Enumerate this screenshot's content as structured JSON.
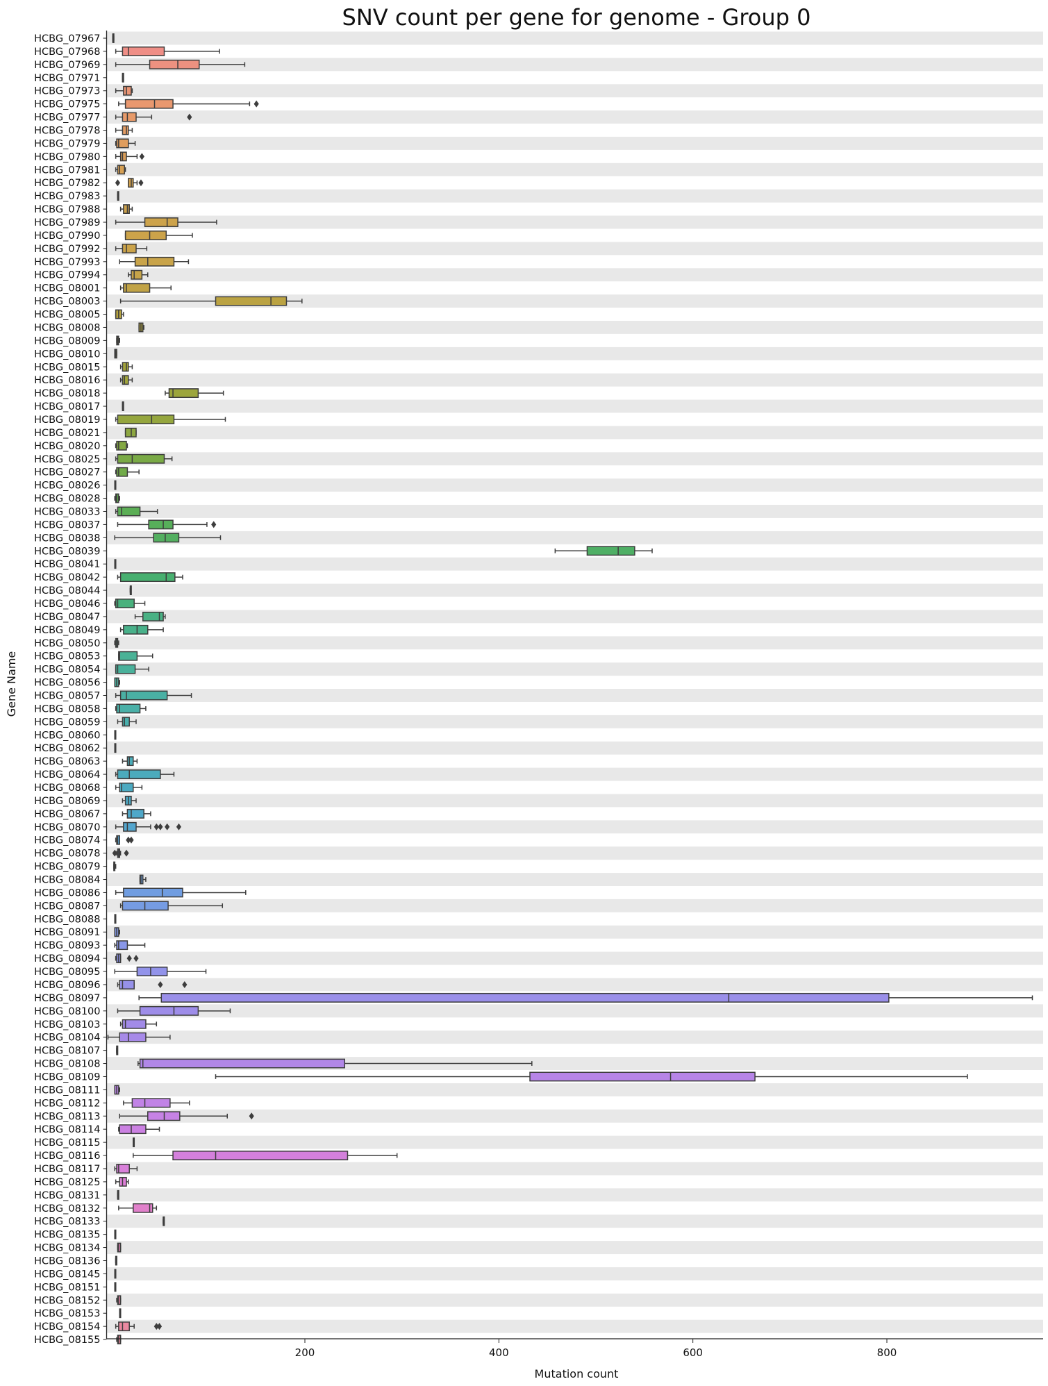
{
  "chart_data": {
    "type": "box",
    "orientation": "horizontal",
    "title": "SNV count per gene for genome - Group 0",
    "xlabel": "Mutation count",
    "ylabel": "Gene Name",
    "xlim": [
      -20,
      960
    ],
    "xticks": [
      200,
      400,
      600,
      800
    ],
    "row_stripes": true,
    "grid": false,
    "categories": [
      "HCBG_07967",
      "HCBG_07968",
      "HCBG_07969",
      "HCBG_07971",
      "HCBG_07973",
      "HCBG_07975",
      "HCBG_07977",
      "HCBG_07978",
      "HCBG_07979",
      "HCBG_07980",
      "HCBG_07981",
      "HCBG_07982",
      "HCBG_07983",
      "HCBG_07988",
      "HCBG_07989",
      "HCBG_07990",
      "HCBG_07992",
      "HCBG_07993",
      "HCBG_07994",
      "HCBG_08001",
      "HCBG_08003",
      "HCBG_08005",
      "HCBG_08008",
      "HCBG_08009",
      "HCBG_08010",
      "HCBG_08015",
      "HCBG_08016",
      "HCBG_08018",
      "HCBG_08017",
      "HCBG_08019",
      "HCBG_08021",
      "HCBG_08020",
      "HCBG_08025",
      "HCBG_08027",
      "HCBG_08026",
      "HCBG_08028",
      "HCBG_08033",
      "HCBG_08037",
      "HCBG_08038",
      "HCBG_08039",
      "HCBG_08041",
      "HCBG_08042",
      "HCBG_08044",
      "HCBG_08046",
      "HCBG_08047",
      "HCBG_08049",
      "HCBG_08050",
      "HCBG_08053",
      "HCBG_08054",
      "HCBG_08056",
      "HCBG_08057",
      "HCBG_08058",
      "HCBG_08059",
      "HCBG_08060",
      "HCBG_08062",
      "HCBG_08063",
      "HCBG_08064",
      "HCBG_08068",
      "HCBG_08069",
      "HCBG_08067",
      "HCBG_08070",
      "HCBG_08074",
      "HCBG_08078",
      "HCBG_08079",
      "HCBG_08084",
      "HCBG_08086",
      "HCBG_08087",
      "HCBG_08088",
      "HCBG_08091",
      "HCBG_08093",
      "HCBG_08094",
      "HCBG_08095",
      "HCBG_08096",
      "HCBG_08097",
      "HCBG_08100",
      "HCBG_08103",
      "HCBG_08104",
      "HCBG_08107",
      "HCBG_08108",
      "HCBG_08109",
      "HCBG_08111",
      "HCBG_08112",
      "HCBG_08113",
      "HCBG_08114",
      "HCBG_08115",
      "HCBG_08116",
      "HCBG_08117",
      "HCBG_08125",
      "HCBG_08131",
      "HCBG_08132",
      "HCBG_08133",
      "HCBG_08135",
      "HCBG_08134",
      "HCBG_08136",
      "HCBG_08145",
      "HCBG_08151",
      "HCBG_08152",
      "HCBG_08153",
      "HCBG_08154",
      "HCBG_08155"
    ],
    "boxes": [
      {
        "min": 2,
        "q1": 2,
        "median": 2,
        "q3": 3,
        "max": 3,
        "outliers": []
      },
      {
        "min": 5,
        "q1": 12,
        "median": 18,
        "q3": 55,
        "max": 112,
        "outliers": []
      },
      {
        "min": 5,
        "q1": 40,
        "median": 69,
        "q3": 91,
        "max": 138,
        "outliers": []
      },
      {
        "min": 12,
        "q1": 12,
        "median": 12,
        "q3": 12,
        "max": 12,
        "outliers": []
      },
      {
        "min": 5,
        "q1": 13,
        "median": 16,
        "q3": 21,
        "max": 22,
        "outliers": []
      },
      {
        "min": 8,
        "q1": 15,
        "median": 45,
        "q3": 64,
        "max": 143,
        "outliers": [
          150
        ]
      },
      {
        "min": 5,
        "q1": 12,
        "median": 17,
        "q3": 26,
        "max": 42,
        "outliers": [
          81
        ]
      },
      {
        "min": 5,
        "q1": 12,
        "median": 16,
        "q3": 18,
        "max": 22,
        "outliers": []
      },
      {
        "min": 5,
        "q1": 6,
        "median": 8,
        "q3": 18,
        "max": 25,
        "outliers": []
      },
      {
        "min": 5,
        "q1": 10,
        "median": 12,
        "q3": 16,
        "max": 27,
        "outliers": [
          32
        ]
      },
      {
        "min": 5,
        "q1": 7,
        "median": 9,
        "q3": 14,
        "max": 15,
        "outliers": []
      },
      {
        "min": 18,
        "q1": 18,
        "median": 21,
        "q3": 23,
        "max": 27,
        "outliers": [
          7,
          31
        ]
      },
      {
        "min": 7,
        "q1": 7,
        "median": 7,
        "q3": 7,
        "max": 7,
        "outliers": []
      },
      {
        "min": 10,
        "q1": 13,
        "median": 17,
        "q3": 19,
        "max": 22,
        "outliers": []
      },
      {
        "min": 5,
        "q1": 35,
        "median": 58,
        "q3": 69,
        "max": 109,
        "outliers": []
      },
      {
        "min": 15,
        "q1": 15,
        "median": 40,
        "q3": 57,
        "max": 84,
        "outliers": []
      },
      {
        "min": 5,
        "q1": 12,
        "median": 16,
        "q3": 26,
        "max": 37,
        "outliers": []
      },
      {
        "min": 9,
        "q1": 25,
        "median": 38,
        "q3": 65,
        "max": 80,
        "outliers": []
      },
      {
        "min": 18,
        "q1": 21,
        "median": 24,
        "q3": 32,
        "max": 38,
        "outliers": []
      },
      {
        "min": 10,
        "q1": 13,
        "median": 16,
        "q3": 40,
        "max": 62,
        "outliers": []
      },
      {
        "min": 10,
        "q1": 108,
        "median": 165,
        "q3": 181,
        "max": 197,
        "outliers": []
      },
      {
        "min": 5,
        "q1": 5,
        "median": 8,
        "q3": 11,
        "max": 13,
        "outliers": []
      },
      {
        "min": 29,
        "q1": 29,
        "median": 31,
        "q3": 33,
        "max": 34,
        "outliers": []
      },
      {
        "min": 6,
        "q1": 6,
        "median": 7,
        "q3": 8,
        "max": 9,
        "outliers": []
      },
      {
        "min": 4,
        "q1": 4,
        "median": 5,
        "q3": 6,
        "max": 6,
        "outliers": []
      },
      {
        "min": 10,
        "q1": 12,
        "median": 16,
        "q3": 18,
        "max": 22,
        "outliers": []
      },
      {
        "min": 10,
        "q1": 12,
        "median": 14,
        "q3": 18,
        "max": 22,
        "outliers": []
      },
      {
        "min": 56,
        "q1": 60,
        "median": 64,
        "q3": 90,
        "max": 116,
        "outliers": []
      },
      {
        "min": 12,
        "q1": 12,
        "median": 12,
        "q3": 12,
        "max": 12,
        "outliers": []
      },
      {
        "min": 5,
        "q1": 7,
        "median": 42,
        "q3": 65,
        "max": 118,
        "outliers": []
      },
      {
        "min": 15,
        "q1": 15,
        "median": 21,
        "q3": 26,
        "max": 26,
        "outliers": []
      },
      {
        "min": 5,
        "q1": 6,
        "median": 8,
        "q3": 16,
        "max": 17,
        "outliers": []
      },
      {
        "min": 5,
        "q1": 7,
        "median": 22,
        "q3": 55,
        "max": 63,
        "outliers": []
      },
      {
        "min": 5,
        "q1": 6,
        "median": 8,
        "q3": 17,
        "max": 29,
        "outliers": []
      },
      {
        "min": 4,
        "q1": 4,
        "median": 4,
        "q3": 4,
        "max": 4,
        "outliers": []
      },
      {
        "min": 4,
        "q1": 5,
        "median": 6,
        "q3": 8,
        "max": 9,
        "outliers": []
      },
      {
        "min": 5,
        "q1": 7,
        "median": 11,
        "q3": 30,
        "max": 48,
        "outliers": []
      },
      {
        "min": 7,
        "q1": 39,
        "median": 54,
        "q3": 64,
        "max": 99,
        "outliers": [
          106
        ]
      },
      {
        "min": 4,
        "q1": 44,
        "median": 56,
        "q3": 70,
        "max": 113,
        "outliers": []
      },
      {
        "min": 458,
        "q1": 491,
        "median": 523,
        "q3": 540,
        "max": 558,
        "outliers": []
      },
      {
        "min": 4,
        "q1": 4,
        "median": 4,
        "q3": 4,
        "max": 4,
        "outliers": []
      },
      {
        "min": 7,
        "q1": 10,
        "median": 57,
        "q3": 66,
        "max": 74,
        "outliers": []
      },
      {
        "min": 20,
        "q1": 20,
        "median": 20,
        "q3": 20,
        "max": 20,
        "outliers": []
      },
      {
        "min": 4,
        "q1": 5,
        "median": 7,
        "q3": 24,
        "max": 35,
        "outliers": []
      },
      {
        "min": 25,
        "q1": 33,
        "median": 50,
        "q3": 54,
        "max": 56,
        "outliers": []
      },
      {
        "min": 10,
        "q1": 13,
        "median": 27,
        "q3": 38,
        "max": 54,
        "outliers": []
      },
      {
        "min": 4,
        "q1": 5,
        "median": 6,
        "q3": 7,
        "max": 8,
        "outliers": []
      },
      {
        "min": 8,
        "q1": 8,
        "median": 9,
        "q3": 27,
        "max": 43,
        "outliers": []
      },
      {
        "min": 5,
        "q1": 5,
        "median": 7,
        "q3": 25,
        "max": 39,
        "outliers": []
      },
      {
        "min": 4,
        "q1": 4,
        "median": 6,
        "q3": 8,
        "max": 9,
        "outliers": []
      },
      {
        "min": 5,
        "q1": 10,
        "median": 16,
        "q3": 58,
        "max": 83,
        "outliers": []
      },
      {
        "min": 5,
        "q1": 6,
        "median": 9,
        "q3": 30,
        "max": 36,
        "outliers": []
      },
      {
        "min": 7,
        "q1": 12,
        "median": 14,
        "q3": 19,
        "max": 26,
        "outliers": []
      },
      {
        "min": 4,
        "q1": 4,
        "median": 4,
        "q3": 4,
        "max": 4,
        "outliers": []
      },
      {
        "min": 4,
        "q1": 4,
        "median": 4,
        "q3": 4,
        "max": 4,
        "outliers": []
      },
      {
        "min": 12,
        "q1": 17,
        "median": 19,
        "q3": 23,
        "max": 27,
        "outliers": []
      },
      {
        "min": 5,
        "q1": 7,
        "median": 19,
        "q3": 51,
        "max": 65,
        "outliers": []
      },
      {
        "min": 5,
        "q1": 9,
        "median": 11,
        "q3": 23,
        "max": 32,
        "outliers": []
      },
      {
        "min": 12,
        "q1": 15,
        "median": 18,
        "q3": 21,
        "max": 26,
        "outliers": []
      },
      {
        "min": 12,
        "q1": 17,
        "median": 21,
        "q3": 34,
        "max": 41,
        "outliers": []
      },
      {
        "min": 5,
        "q1": 13,
        "median": 17,
        "q3": 26,
        "max": 41,
        "outliers": [
          47,
          51,
          58,
          70
        ]
      },
      {
        "min": 5,
        "q1": 6,
        "median": 7,
        "q3": 9,
        "max": 9,
        "outliers": [
          18,
          21
        ]
      },
      {
        "min": 6,
        "q1": 7,
        "median": 8,
        "q3": 9,
        "max": 10,
        "outliers": [
          4,
          16
        ]
      },
      {
        "min": 3,
        "q1": 3,
        "median": 4,
        "q3": 4,
        "max": 5,
        "outliers": []
      },
      {
        "min": 30,
        "q1": 30,
        "median": 31,
        "q3": 33,
        "max": 36,
        "outliers": []
      },
      {
        "min": 5,
        "q1": 13,
        "median": 53,
        "q3": 74,
        "max": 139,
        "outliers": []
      },
      {
        "min": 10,
        "q1": 12,
        "median": 35,
        "q3": 59,
        "max": 115,
        "outliers": []
      },
      {
        "min": 4,
        "q1": 4,
        "median": 4,
        "q3": 4,
        "max": 4,
        "outliers": []
      },
      {
        "min": 4,
        "q1": 4,
        "median": 6,
        "q3": 8,
        "max": 9,
        "outliers": []
      },
      {
        "min": 4,
        "q1": 6,
        "median": 8,
        "q3": 17,
        "max": 35,
        "outliers": []
      },
      {
        "min": 5,
        "q1": 6,
        "median": 8,
        "q3": 10,
        "max": 10,
        "outliers": [
          19,
          26
        ]
      },
      {
        "min": 4,
        "q1": 27,
        "median": 41,
        "q3": 58,
        "max": 98,
        "outliers": []
      },
      {
        "min": 7,
        "q1": 9,
        "median": 12,
        "q3": 24,
        "max": 24,
        "outliers": [
          51,
          76
        ]
      },
      {
        "min": 29,
        "q1": 52,
        "median": 637,
        "q3": 802,
        "max": 950,
        "outliers": []
      },
      {
        "min": 7,
        "q1": 30,
        "median": 65,
        "q3": 90,
        "max": 123,
        "outliers": []
      },
      {
        "min": 10,
        "q1": 12,
        "median": 15,
        "q3": 36,
        "max": 47,
        "outliers": []
      },
      {
        "min": -3,
        "q1": 9,
        "median": 18,
        "q3": 36,
        "max": 61,
        "outliers": []
      },
      {
        "min": 6,
        "q1": 6,
        "median": 6,
        "q3": 6,
        "max": 6,
        "outliers": []
      },
      {
        "min": 28,
        "q1": 30,
        "median": 33,
        "q3": 241,
        "max": 434,
        "outliers": []
      },
      {
        "min": 108,
        "q1": 432,
        "median": 577,
        "q3": 664,
        "max": 883,
        "outliers": []
      },
      {
        "min": 4,
        "q1": 4,
        "median": 6,
        "q3": 8,
        "max": 9,
        "outliers": []
      },
      {
        "min": 13,
        "q1": 22,
        "median": 35,
        "q3": 61,
        "max": 81,
        "outliers": []
      },
      {
        "min": 9,
        "q1": 38,
        "median": 55,
        "q3": 71,
        "max": 120,
        "outliers": [
          145
        ]
      },
      {
        "min": 8,
        "q1": 9,
        "median": 21,
        "q3": 36,
        "max": 50,
        "outliers": []
      },
      {
        "min": 23,
        "q1": 23,
        "median": 23,
        "q3": 23,
        "max": 23,
        "outliers": []
      },
      {
        "min": 23,
        "q1": 64,
        "median": 108,
        "q3": 244,
        "max": 295,
        "outliers": []
      },
      {
        "min": 4,
        "q1": 6,
        "median": 8,
        "q3": 19,
        "max": 27,
        "outliers": []
      },
      {
        "min": 5,
        "q1": 9,
        "median": 12,
        "q3": 16,
        "max": 18,
        "outliers": []
      },
      {
        "min": 7,
        "q1": 7,
        "median": 7,
        "q3": 7,
        "max": 7,
        "outliers": []
      },
      {
        "min": 8,
        "q1": 23,
        "median": 40,
        "q3": 43,
        "max": 47,
        "outliers": []
      },
      {
        "min": 54,
        "q1": 54,
        "median": 54,
        "q3": 54,
        "max": 54,
        "outliers": []
      },
      {
        "min": 4,
        "q1": 4,
        "median": 4,
        "q3": 4,
        "max": 4,
        "outliers": []
      },
      {
        "min": 7,
        "q1": 7,
        "median": 8,
        "q3": 10,
        "max": 10,
        "outliers": []
      },
      {
        "min": 5,
        "q1": 5,
        "median": 5,
        "q3": 5,
        "max": 5,
        "outliers": []
      },
      {
        "min": 4,
        "q1": 4,
        "median": 4,
        "q3": 5,
        "max": 5,
        "outliers": []
      },
      {
        "min": 4,
        "q1": 4,
        "median": 4,
        "q3": 5,
        "max": 5,
        "outliers": []
      },
      {
        "min": 6,
        "q1": 7,
        "median": 8,
        "q3": 10,
        "max": 10,
        "outliers": []
      },
      {
        "min": 9,
        "q1": 9,
        "median": 9,
        "q3": 9,
        "max": 9,
        "outliers": []
      },
      {
        "min": 5,
        "q1": 8,
        "median": 12,
        "q3": 19,
        "max": 24,
        "outliers": [
          47,
          50
        ]
      },
      {
        "min": 6,
        "q1": 7,
        "median": 8,
        "q3": 10,
        "max": 10,
        "outliers": []
      }
    ],
    "palette": [
      "#f08c8c",
      "#e89a6a",
      "#cfa24b",
      "#c9a44a",
      "#a9a23a",
      "#95a63e",
      "#5fae4f",
      "#48b06f",
      "#4ab294",
      "#4aafaf",
      "#4ba9c6",
      "#6a9fdf",
      "#8e95ea",
      "#a58ae8",
      "#c482e6",
      "#df7fd6",
      "#e585b0",
      "#ec8a9e"
    ]
  }
}
